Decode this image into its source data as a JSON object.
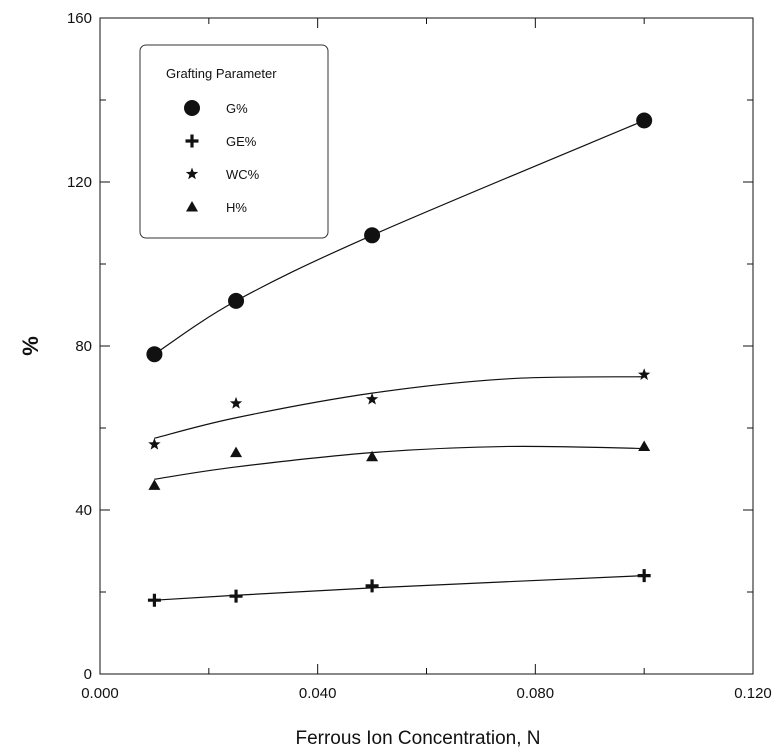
{
  "chart_data": {
    "type": "scatter",
    "title": "",
    "xlabel": "Ferrous Ion Concentration, N",
    "ylabel": "%",
    "xlim": [
      0.0,
      0.12
    ],
    "ylim": [
      0,
      160
    ],
    "x_ticks": [
      "0.000",
      "0.040",
      "0.080",
      "0.120"
    ],
    "y_ticks": [
      "0",
      "40",
      "80",
      "120",
      "160"
    ],
    "grid": false,
    "legend": {
      "title": "Grafting Parameter",
      "position": "top-left"
    },
    "series": [
      {
        "name": "G%",
        "marker": "circle",
        "x": [
          0.01,
          0.025,
          0.05,
          0.1
        ],
        "y": [
          78,
          91,
          107,
          135
        ],
        "fit": [
          [
            0.01,
            78
          ],
          [
            0.025,
            91
          ],
          [
            0.05,
            107
          ],
          [
            0.1,
            135
          ]
        ]
      },
      {
        "name": "GE%",
        "marker": "plus",
        "x": [
          0.01,
          0.025,
          0.05,
          0.1
        ],
        "y": [
          18,
          19,
          21.5,
          24
        ],
        "fit": [
          [
            0.01,
            18
          ],
          [
            0.025,
            19.2
          ],
          [
            0.05,
            21
          ],
          [
            0.1,
            24
          ]
        ]
      },
      {
        "name": "WC%",
        "marker": "star",
        "x": [
          0.01,
          0.025,
          0.05,
          0.1
        ],
        "y": [
          56,
          66,
          67,
          73
        ],
        "fit": [
          [
            0.01,
            57.5
          ],
          [
            0.025,
            62.5
          ],
          [
            0.05,
            68.5
          ],
          [
            0.075,
            72
          ],
          [
            0.1,
            72.5
          ]
        ]
      },
      {
        "name": "H%",
        "marker": "triangle",
        "x": [
          0.01,
          0.025,
          0.05,
          0.1
        ],
        "y": [
          46,
          54,
          53,
          55.5
        ],
        "fit": [
          [
            0.01,
            47.5
          ],
          [
            0.025,
            50.5
          ],
          [
            0.05,
            54
          ],
          [
            0.075,
            55.5
          ],
          [
            0.1,
            55
          ]
        ]
      }
    ]
  }
}
